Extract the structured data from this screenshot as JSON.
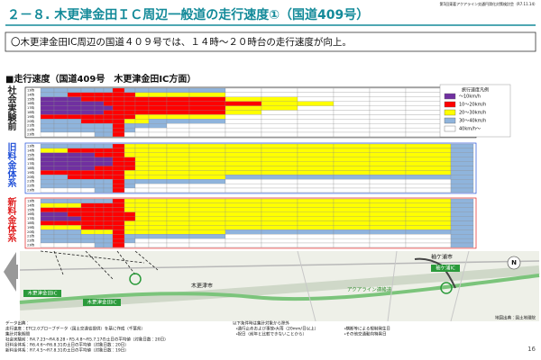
{
  "header": {
    "meeting": "第5回東葛アクアライン交通円滑化対策検討会（R7.11.14）",
    "title": "２－８. 木更津金田ＩＣ周辺一般道の走行速度①（国道409号）"
  },
  "summary": "〇木更津金田IC周辺の国道４０９号では、１４時～２０時台の走行速度が向上。",
  "section_title": "■走行速度（国道409号　木更津金田IC方面）",
  "legend": {
    "title": "旅行速度凡例",
    "items": [
      {
        "label": "～10km/h",
        "color": "#7030a0"
      },
      {
        "label": "10～20km/h",
        "color": "#ff0000"
      },
      {
        "label": "20～30km/h",
        "color": "#ffff00"
      },
      {
        "label": "30～40km/h",
        "color": "#8fb4dc"
      },
      {
        "label": "40km/h～",
        "color": "#ffffff"
      }
    ]
  },
  "hours": [
    "13時",
    "14時",
    "15時",
    "16時",
    "17時",
    "18時",
    "19時",
    "20時",
    "21時",
    "22時",
    "23時"
  ],
  "groups": [
    {
      "label": "社会実験前",
      "color": "#222222",
      "rows": [
        [
          3,
          3,
          3,
          3,
          3,
          3,
          1,
          3,
          3,
          3,
          3,
          3,
          4,
          4,
          4,
          4,
          4,
          4,
          3
        ],
        [
          3,
          3,
          1,
          1,
          1,
          1,
          1,
          1,
          2,
          2,
          2,
          2,
          4,
          4,
          4,
          4,
          4,
          4,
          3
        ],
        [
          0,
          0,
          0,
          1,
          1,
          1,
          1,
          1,
          1,
          1,
          1,
          1,
          2,
          2,
          4,
          4,
          4,
          4,
          3
        ],
        [
          0,
          0,
          0,
          0,
          0,
          1,
          1,
          1,
          1,
          1,
          1,
          1,
          1,
          2,
          2,
          4,
          4,
          4,
          3
        ],
        [
          0,
          0,
          0,
          0,
          0,
          0,
          1,
          1,
          1,
          1,
          1,
          1,
          2,
          2,
          4,
          4,
          4,
          4,
          3
        ],
        [
          0,
          0,
          0,
          0,
          0,
          1,
          1,
          1,
          1,
          1,
          1,
          1,
          2,
          4,
          4,
          4,
          4,
          4,
          3
        ],
        [
          1,
          1,
          1,
          1,
          1,
          1,
          1,
          1,
          2,
          2,
          2,
          2,
          4,
          4,
          4,
          4,
          4,
          4,
          3
        ],
        [
          3,
          3,
          3,
          1,
          1,
          1,
          1,
          2,
          2,
          3,
          3,
          3,
          4,
          4,
          4,
          4,
          4,
          4,
          3
        ],
        [
          3,
          3,
          3,
          3,
          3,
          3,
          1,
          3,
          3,
          3,
          4,
          4,
          4,
          4,
          4,
          4,
          4,
          4,
          3
        ],
        [
          3,
          3,
          3,
          3,
          3,
          3,
          1,
          3,
          4,
          4,
          4,
          4,
          4,
          4,
          4,
          4,
          4,
          4,
          3
        ],
        [
          4,
          4,
          4,
          4,
          3,
          3,
          1,
          4,
          4,
          4,
          4,
          4,
          4,
          4,
          4,
          4,
          4,
          4,
          3
        ]
      ]
    },
    {
      "label": "旧料金体系",
      "color": "#1f4fd8",
      "rows": [
        [
          3,
          3,
          3,
          3,
          3,
          3,
          1,
          2,
          2,
          2,
          2,
          2,
          2,
          2,
          2,
          2,
          2,
          2,
          3
        ],
        [
          2,
          2,
          1,
          1,
          1,
          1,
          1,
          2,
          2,
          2,
          2,
          2,
          2,
          2,
          2,
          2,
          2,
          2,
          3
        ],
        [
          0,
          0,
          0,
          0,
          1,
          1,
          1,
          2,
          2,
          2,
          2,
          2,
          2,
          2,
          2,
          2,
          2,
          2,
          3
        ],
        [
          0,
          0,
          0,
          0,
          0,
          0,
          1,
          1,
          2,
          2,
          2,
          2,
          2,
          2,
          2,
          2,
          2,
          2,
          3
        ],
        [
          0,
          0,
          0,
          0,
          0,
          0,
          1,
          1,
          2,
          2,
          2,
          2,
          2,
          2,
          2,
          2,
          2,
          2,
          3
        ],
        [
          0,
          0,
          0,
          0,
          1,
          1,
          1,
          1,
          2,
          2,
          2,
          2,
          2,
          2,
          2,
          2,
          2,
          2,
          3
        ],
        [
          1,
          1,
          1,
          1,
          1,
          1,
          1,
          2,
          2,
          2,
          2,
          2,
          2,
          2,
          2,
          2,
          2,
          2,
          3
        ],
        [
          3,
          3,
          1,
          1,
          1,
          1,
          1,
          2,
          2,
          2,
          2,
          2,
          3,
          3,
          3,
          3,
          3,
          3,
          3
        ],
        [
          3,
          3,
          3,
          3,
          3,
          3,
          1,
          3,
          3,
          3,
          3,
          3,
          4,
          4,
          4,
          4,
          4,
          4,
          3
        ],
        [
          3,
          3,
          3,
          3,
          3,
          3,
          1,
          3,
          4,
          4,
          4,
          4,
          4,
          4,
          4,
          4,
          4,
          4,
          3
        ],
        [
          4,
          4,
          4,
          4,
          3,
          3,
          1,
          4,
          4,
          4,
          4,
          4,
          4,
          4,
          4,
          4,
          4,
          4,
          3
        ]
      ]
    },
    {
      "label": "新料金体系",
      "color": "#e02020",
      "rows": [
        [
          3,
          3,
          3,
          3,
          3,
          3,
          1,
          2,
          2,
          2,
          2,
          2,
          2,
          2,
          2,
          2,
          2,
          2,
          3
        ],
        [
          2,
          2,
          2,
          1,
          1,
          1,
          1,
          2,
          2,
          2,
          2,
          2,
          2,
          2,
          2,
          2,
          2,
          2,
          3
        ],
        [
          1,
          1,
          1,
          1,
          1,
          1,
          1,
          2,
          2,
          2,
          2,
          2,
          2,
          2,
          2,
          2,
          2,
          2,
          3
        ],
        [
          0,
          0,
          1,
          1,
          1,
          1,
          1,
          1,
          2,
          2,
          2,
          2,
          2,
          2,
          2,
          2,
          2,
          2,
          3
        ],
        [
          0,
          0,
          0,
          1,
          1,
          1,
          1,
          1,
          2,
          2,
          2,
          2,
          2,
          2,
          2,
          2,
          2,
          2,
          3
        ],
        [
          1,
          1,
          1,
          1,
          1,
          1,
          1,
          2,
          2,
          2,
          2,
          2,
          2,
          2,
          2,
          2,
          2,
          2,
          3
        ],
        [
          2,
          2,
          2,
          1,
          1,
          1,
          1,
          2,
          2,
          2,
          2,
          2,
          2,
          2,
          2,
          2,
          2,
          2,
          3
        ],
        [
          3,
          3,
          3,
          2,
          2,
          2,
          1,
          2,
          2,
          2,
          2,
          2,
          3,
          3,
          3,
          3,
          3,
          3,
          3
        ],
        [
          3,
          3,
          3,
          3,
          3,
          3,
          1,
          3,
          3,
          3,
          3,
          3,
          4,
          4,
          4,
          4,
          4,
          4,
          3
        ],
        [
          3,
          3,
          3,
          3,
          3,
          3,
          1,
          3,
          4,
          4,
          4,
          4,
          4,
          4,
          4,
          4,
          4,
          4,
          3
        ],
        [
          4,
          4,
          4,
          4,
          3,
          3,
          1,
          4,
          4,
          4,
          4,
          4,
          4,
          4,
          4,
          4,
          4,
          4,
          3
        ]
      ]
    }
  ],
  "map": {
    "ic_kaneda_1": "木更津金田IC",
    "ic_kaneda_2": "木更津金田IC",
    "city_kisarazu": "木更津市",
    "city_sodegaura": "袖ケ浦市",
    "ic_sodegaura": "袖ケ浦IC",
    "road": "アクアライン連絡道",
    "source": "地図出典：国土地理院",
    "north": "N"
  },
  "notes": {
    "left": [
      "データ出典：",
      "走行速度：ETC2.0プローブデータ（国土交通省提供）を基に作成（千葉県）",
      "集計対象期間",
      "社会実験前：R4.7.23～R4.8.28・R5.4.8～R5.7.17の土日の平均値（対象日数：20日）",
      "旧料金体系：R6.4.6～R6.8.31の土日の平均値（対象日数：20日）",
      "新料金体系：R7.4.5～R7.8.31の土日の平均値（対象日数：19日）"
    ],
    "right": [
      "以下条件時は集計対象から除外",
      "・通行止めおよび事故・大雨（20mm/日以上）",
      "・祝日（前年と比較できないことから）",
      "・横断等による規制発生日",
      "・その他交通動向特異日"
    ]
  },
  "page_number": "16"
}
